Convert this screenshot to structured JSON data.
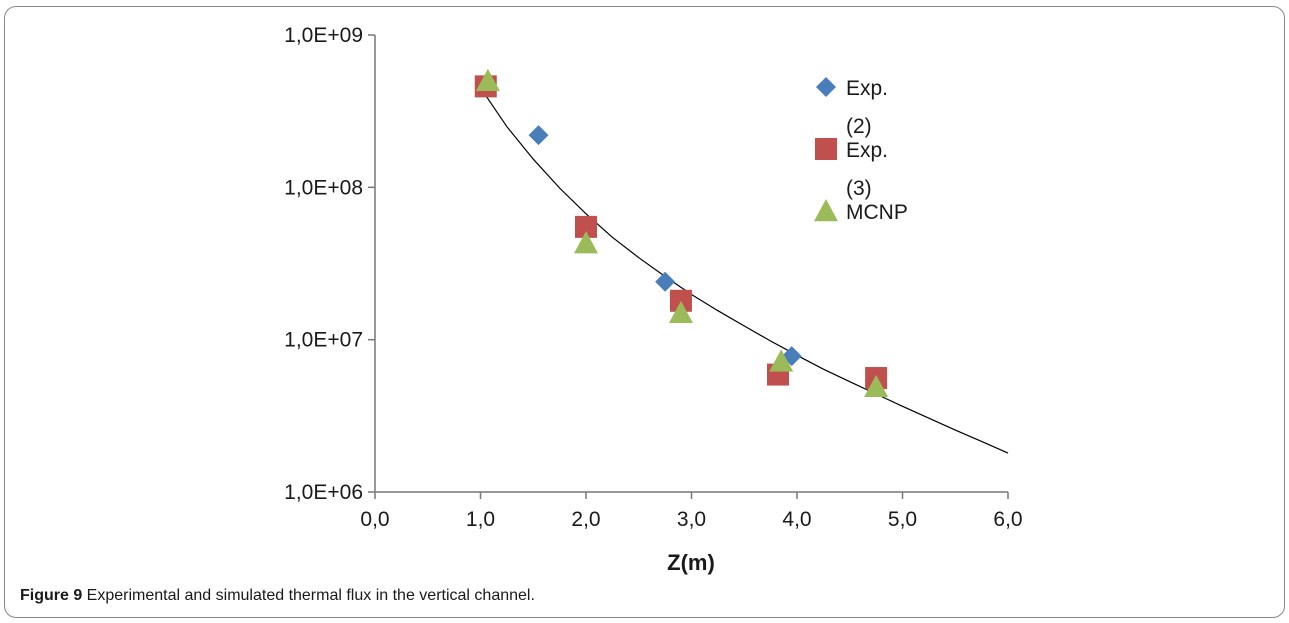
{
  "chart_data": {
    "type": "scatter",
    "xlabel": "Z(m)",
    "ylabel": "",
    "xlim": [
      0,
      6
    ],
    "ylim": [
      1000000,
      1000000000
    ],
    "yscale": "log",
    "x_ticks": [
      "0,0",
      "1,0",
      "2,0",
      "3,0",
      "4,0",
      "5,0",
      "6,0"
    ],
    "x_tick_values": [
      0,
      1,
      2,
      3,
      4,
      5,
      6
    ],
    "y_ticks": [
      "1,0E+06",
      "1,0E+07",
      "1,0E+08",
      "1,0E+09"
    ],
    "y_tick_values": [
      1000000,
      10000000,
      100000000,
      1000000000
    ],
    "grid": false,
    "legend_position": "top-right",
    "series": [
      {
        "name": "Exp. (2)",
        "legend_lines": [
          "Exp.",
          "(2)"
        ],
        "marker": "diamond",
        "color": "#4a7ebb",
        "x": [
          1.55,
          2.75,
          3.95
        ],
        "y": [
          220000000,
          24000000,
          7800000
        ]
      },
      {
        "name": "Exp. (3)",
        "legend_lines": [
          "Exp.",
          "(3)"
        ],
        "marker": "square",
        "color": "#c0504d",
        "x": [
          1.05,
          2.0,
          2.9,
          3.82,
          4.75
        ],
        "y": [
          460000000,
          55000000,
          18000000,
          5900000,
          5600000
        ]
      },
      {
        "name": "MCNP",
        "legend_lines": [
          "MCNP"
        ],
        "marker": "triangle",
        "color": "#9bbb59",
        "x": [
          1.07,
          2.0,
          2.9,
          3.85,
          4.75
        ],
        "y": [
          500000000,
          43000000,
          15000000,
          7200000,
          4900000
        ]
      }
    ],
    "trendline": {
      "type": "power",
      "color": "#000000",
      "x": [
        1.0,
        1.25,
        1.5,
        1.75,
        2.0,
        2.25,
        2.5,
        2.75,
        3.0,
        3.25,
        3.5,
        3.75,
        4.0,
        4.25,
        4.5,
        4.75,
        5.0,
        5.25,
        5.5,
        5.75,
        6.0
      ],
      "y": [
        450000000,
        250000000,
        153000000,
        99000000,
        67000000,
        47000000,
        34500000,
        26000000,
        19800000,
        15500000,
        12300000,
        9800000,
        7900000,
        6400000,
        5300000,
        4400000,
        3650000,
        3050000,
        2550000,
        2150000,
        1800000
      ]
    }
  },
  "caption": {
    "label": "Figure 9",
    "text": " Experimental and simulated thermal flux in the vertical channel."
  }
}
